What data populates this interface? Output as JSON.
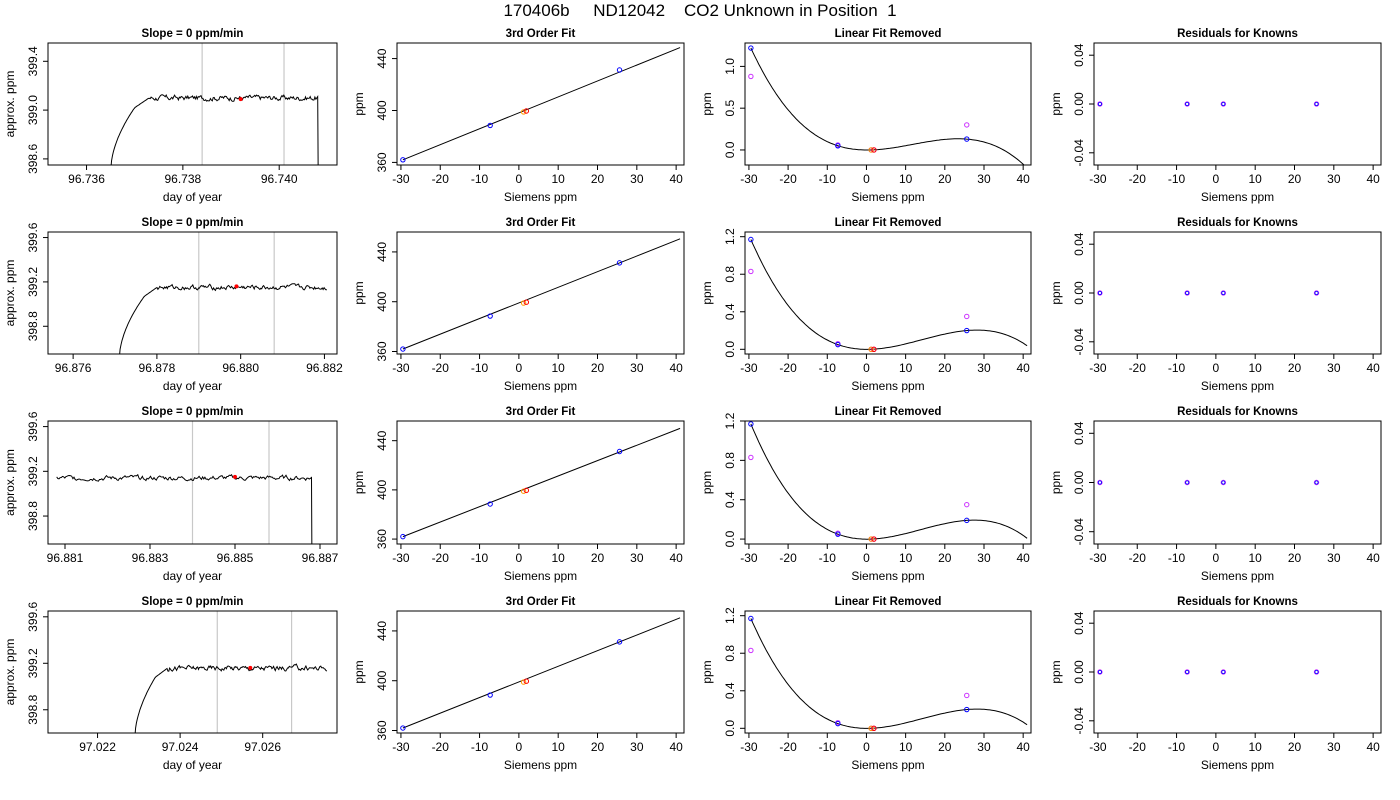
{
  "title": "170406b     ND12042    CO2 Unknown in Position  1",
  "chart_data": [
    {
      "type": "line",
      "row": 1,
      "title": "Slope =  0  ppm/min",
      "xlabel": "day of year",
      "ylabel": "approx. ppm",
      "xlim": [
        96.7352,
        96.7412
      ],
      "ylim": [
        398.55,
        399.55
      ],
      "xticks": [
        96.736,
        96.738,
        96.74
      ],
      "xtick_labels": [
        "96.736",
        "96.738",
        "96.740"
      ],
      "yticks": [
        398.6,
        399.0,
        399.4
      ],
      "ytick_labels": [
        "398.6",
        "399.0",
        "399.4"
      ],
      "vlines": [
        96.7384,
        96.7401
      ],
      "baseline": 399.1,
      "rise": [
        96.7365,
        96.737,
        96.7373
      ],
      "drop": 96.7408,
      "marker": [
        96.7392,
        399.09
      ]
    },
    {
      "type": "line",
      "row": 1,
      "title": "3rd Order Fit",
      "xlabel": "Siemens ppm",
      "ylabel": "ppm",
      "xlim": [
        -31,
        42
      ],
      "ylim": [
        358,
        452
      ],
      "xticks": [
        -30,
        -20,
        -10,
        0,
        10,
        20,
        30,
        40
      ],
      "yticks": [
        360,
        400,
        440
      ],
      "points": [
        [
          -29.5,
          362.0
        ],
        [
          -7.3,
          388.5
        ],
        [
          1.2,
          398.9
        ],
        [
          1.9,
          399.6
        ],
        [
          25.6,
          431.2
        ]
      ],
      "line": [
        [
          -29.5,
          362.0
        ],
        [
          41,
          448.5
        ]
      ]
    },
    {
      "type": "line",
      "row": 1,
      "title": "Linear Fit Removed",
      "xlabel": "Siemens ppm",
      "ylabel": "ppm",
      "xlim": [
        -31,
        42
      ],
      "ylim": [
        -0.18,
        1.28
      ],
      "xticks": [
        -30,
        -20,
        -10,
        0,
        10,
        20,
        30,
        40
      ],
      "yticks": [
        0.0,
        0.5,
        1.0
      ],
      "ytick_labels": [
        "0.0",
        "0.5",
        "1.0"
      ],
      "blue": [
        [
          -29.5,
          1.22
        ],
        [
          -7.3,
          0.05
        ],
        [
          1.2,
          0.0
        ],
        [
          1.9,
          0.0
        ],
        [
          25.6,
          0.13
        ]
      ],
      "magenta": [
        [
          -29.5,
          0.88
        ],
        [
          -7.3,
          0.06
        ],
        [
          1.2,
          0.0
        ],
        [
          1.9,
          0.0
        ],
        [
          25.6,
          0.3
        ]
      ]
    },
    {
      "type": "scatter",
      "row": 1,
      "title": "Residuals for Knowns",
      "xlabel": "Siemens ppm",
      "ylabel": "ppm",
      "xlim": [
        -31,
        42
      ],
      "ylim": [
        -0.05,
        0.05
      ],
      "xticks": [
        -30,
        -20,
        -10,
        0,
        10,
        20,
        30,
        40
      ],
      "yticks": [
        -0.04,
        0.0,
        0.04
      ],
      "ytick_labels": [
        "-0.04",
        "0.00",
        "0.04"
      ],
      "points": [
        [
          -29.5,
          0
        ],
        [
          -7.3,
          0
        ],
        [
          1.9,
          0
        ],
        [
          25.6,
          0
        ]
      ]
    },
    {
      "type": "line",
      "row": 2,
      "title": "Slope =  0  ppm/min",
      "xlabel": "day of year",
      "ylabel": "approx. ppm",
      "xlim": [
        96.8754,
        96.8823
      ],
      "ylim": [
        398.55,
        399.65
      ],
      "xticks": [
        96.876,
        96.878,
        96.88,
        96.882
      ],
      "xtick_labels": [
        "96.876",
        "96.878",
        "96.880",
        "96.882"
      ],
      "yticks": [
        398.8,
        399.2,
        399.6
      ],
      "ytick_labels": [
        "398.8",
        "399.2",
        "399.6"
      ],
      "vlines": [
        96.879,
        96.8808
      ],
      "baseline": 399.15,
      "rise": [
        96.8771,
        96.8777,
        96.878
      ],
      "drop": null,
      "marker": [
        96.8799,
        399.16
      ]
    },
    {
      "type": "line",
      "row": 2,
      "title": "3rd Order Fit",
      "xlabel": "Siemens ppm",
      "ylabel": "ppm",
      "xlim": [
        -31,
        42
      ],
      "ylim": [
        358,
        456
      ],
      "xticks": [
        -30,
        -20,
        -10,
        0,
        10,
        20,
        30,
        40
      ],
      "yticks": [
        360,
        400,
        440
      ],
      "points": [
        [
          -29.5,
          362.0
        ],
        [
          -7.3,
          388.5
        ],
        [
          1.2,
          398.9
        ],
        [
          1.9,
          399.6
        ],
        [
          25.6,
          431.2
        ]
      ],
      "line": [
        [
          -29.5,
          362.0
        ],
        [
          41,
          450.5
        ]
      ]
    },
    {
      "type": "line",
      "row": 2,
      "title": "Linear Fit Removed",
      "xlabel": "Siemens ppm",
      "ylabel": "ppm",
      "xlim": [
        -31,
        42
      ],
      "ylim": [
        -0.05,
        1.25
      ],
      "xticks": [
        -30,
        -20,
        -10,
        0,
        10,
        20,
        30,
        40
      ],
      "yticks": [
        0.0,
        0.4,
        0.8,
        1.2
      ],
      "ytick_labels": [
        "0.0",
        "0.4",
        "0.8",
        "1.2"
      ],
      "blue": [
        [
          -29.5,
          1.17
        ],
        [
          -7.3,
          0.05
        ],
        [
          1.2,
          0.0
        ],
        [
          1.9,
          0.0
        ],
        [
          25.6,
          0.2
        ]
      ],
      "magenta": [
        [
          -29.5,
          0.83
        ],
        [
          -7.3,
          0.06
        ],
        [
          1.2,
          0.0
        ],
        [
          1.9,
          0.0
        ],
        [
          25.6,
          0.35
        ]
      ]
    },
    {
      "type": "scatter",
      "row": 2,
      "title": "Residuals for Knowns",
      "xlabel": "Siemens ppm",
      "ylabel": "ppm",
      "xlim": [
        -31,
        42
      ],
      "ylim": [
        -0.05,
        0.05
      ],
      "xticks": [
        -30,
        -20,
        -10,
        0,
        10,
        20,
        30,
        40
      ],
      "yticks": [
        -0.04,
        0.0,
        0.04
      ],
      "ytick_labels": [
        "-0.04",
        "0.00",
        "0.04"
      ],
      "points": [
        [
          -29.5,
          0
        ],
        [
          -7.3,
          0
        ],
        [
          1.9,
          0
        ],
        [
          25.6,
          0
        ]
      ]
    },
    {
      "type": "line",
      "row": 3,
      "title": "Slope =  0  ppm/min",
      "xlabel": "day of year",
      "ylabel": "approx. ppm",
      "xlim": [
        96.8806,
        96.8874
      ],
      "ylim": [
        398.55,
        399.65
      ],
      "xticks": [
        96.881,
        96.883,
        96.885,
        96.887
      ],
      "xtick_labels": [
        "96.881",
        "96.883",
        "96.885",
        "96.887"
      ],
      "yticks": [
        398.8,
        399.2,
        399.6
      ],
      "ytick_labels": [
        "398.8",
        "399.2",
        "399.6"
      ],
      "vlines": [
        96.884,
        96.8858
      ],
      "baseline": 399.14,
      "rise": null,
      "drop": 96.8868,
      "marker": [
        96.885,
        399.15
      ]
    },
    {
      "type": "line",
      "row": 3,
      "title": "3rd Order Fit",
      "xlabel": "Siemens ppm",
      "ylabel": "ppm",
      "xlim": [
        -31,
        42
      ],
      "ylim": [
        356,
        456
      ],
      "xticks": [
        -30,
        -20,
        -10,
        0,
        10,
        20,
        30,
        40
      ],
      "yticks": [
        360,
        400,
        440
      ],
      "points": [
        [
          -29.5,
          362.0
        ],
        [
          -7.3,
          388.5
        ],
        [
          1.2,
          398.9
        ],
        [
          1.9,
          399.6
        ],
        [
          25.6,
          431.2
        ]
      ],
      "line": [
        [
          -29.5,
          362.0
        ],
        [
          41,
          450.0
        ]
      ]
    },
    {
      "type": "line",
      "row": 3,
      "title": "Linear Fit Removed",
      "xlabel": "Siemens ppm",
      "ylabel": "ppm",
      "xlim": [
        -31,
        42
      ],
      "ylim": [
        -0.05,
        1.2
      ],
      "xticks": [
        -30,
        -20,
        -10,
        0,
        10,
        20,
        30,
        40
      ],
      "yticks": [
        0.0,
        0.4,
        0.8,
        1.2
      ],
      "ytick_labels": [
        "0.0",
        "0.4",
        "0.8",
        "1.2"
      ],
      "blue": [
        [
          -29.5,
          1.17
        ],
        [
          -7.3,
          0.05
        ],
        [
          1.2,
          0.0
        ],
        [
          1.9,
          0.0
        ],
        [
          25.6,
          0.19
        ]
      ],
      "magenta": [
        [
          -29.5,
          0.83
        ],
        [
          -7.3,
          0.06
        ],
        [
          1.2,
          0.0
        ],
        [
          1.9,
          0.0
        ],
        [
          25.6,
          0.35
        ]
      ]
    },
    {
      "type": "scatter",
      "row": 3,
      "title": "Residuals for Knowns",
      "xlabel": "Siemens ppm",
      "ylabel": "ppm",
      "xlim": [
        -31,
        42
      ],
      "ylim": [
        -0.05,
        0.05
      ],
      "xticks": [
        -30,
        -20,
        -10,
        0,
        10,
        20,
        30,
        40
      ],
      "yticks": [
        -0.04,
        0.0,
        0.04
      ],
      "ytick_labels": [
        "-0.04",
        "0.00",
        "0.04"
      ],
      "points": [
        [
          -29.5,
          0
        ],
        [
          -7.3,
          0
        ],
        [
          1.9,
          0
        ],
        [
          25.6,
          0
        ]
      ]
    },
    {
      "type": "line",
      "row": 4,
      "title": "Slope =  0  ppm/min",
      "xlabel": "day of year",
      "ylabel": "approx. ppm",
      "xlim": [
        97.0208,
        97.0278
      ],
      "ylim": [
        398.6,
        399.65
      ],
      "xticks": [
        97.022,
        97.024,
        97.026
      ],
      "xtick_labels": [
        "97.022",
        "97.024",
        "97.026"
      ],
      "yticks": [
        398.8,
        399.2,
        399.6
      ],
      "ytick_labels": [
        "398.8",
        "399.2",
        "399.6"
      ],
      "vlines": [
        97.0249,
        97.0267
      ],
      "baseline": 399.16,
      "rise": [
        97.0229,
        97.0234,
        97.0237
      ],
      "drop": null,
      "marker": [
        97.0257,
        399.16
      ]
    },
    {
      "type": "line",
      "row": 4,
      "title": "3rd Order Fit",
      "xlabel": "Siemens ppm",
      "ylabel": "ppm",
      "xlim": [
        -31,
        42
      ],
      "ylim": [
        358,
        456
      ],
      "xticks": [
        -30,
        -20,
        -10,
        0,
        10,
        20,
        30,
        40
      ],
      "yticks": [
        360,
        400,
        440
      ],
      "points": [
        [
          -29.5,
          362.0
        ],
        [
          -7.3,
          388.5
        ],
        [
          1.2,
          398.9
        ],
        [
          1.9,
          399.6
        ],
        [
          25.6,
          431.2
        ]
      ],
      "line": [
        [
          -29.5,
          362.0
        ],
        [
          41,
          450.5
        ]
      ]
    },
    {
      "type": "line",
      "row": 4,
      "title": "Linear Fit Removed",
      "xlabel": "Siemens ppm",
      "ylabel": "ppm",
      "xlim": [
        -31,
        42
      ],
      "ylim": [
        -0.05,
        1.25
      ],
      "xticks": [
        -30,
        -20,
        -10,
        0,
        10,
        20,
        30,
        40
      ],
      "yticks": [
        0.0,
        0.4,
        0.8,
        1.2
      ],
      "ytick_labels": [
        "0.0",
        "0.4",
        "0.8",
        "1.2"
      ],
      "blue": [
        [
          -29.5,
          1.17
        ],
        [
          -7.3,
          0.05
        ],
        [
          1.2,
          0.0
        ],
        [
          1.9,
          0.0
        ],
        [
          25.6,
          0.2
        ]
      ],
      "magenta": [
        [
          -29.5,
          0.83
        ],
        [
          -7.3,
          0.06
        ],
        [
          1.2,
          0.0
        ],
        [
          1.9,
          0.0
        ],
        [
          25.6,
          0.35
        ]
      ]
    },
    {
      "type": "scatter",
      "row": 4,
      "title": "Residuals for Knowns",
      "xlabel": "Siemens ppm",
      "ylabel": "ppm",
      "xlim": [
        -31,
        42
      ],
      "ylim": [
        -0.05,
        0.05
      ],
      "xticks": [
        -30,
        -20,
        -10,
        0,
        10,
        20,
        30,
        40
      ],
      "yticks": [
        -0.04,
        0.0,
        0.04
      ],
      "ytick_labels": [
        "-0.04",
        "0.00",
        "0.04"
      ],
      "points": [
        [
          -29.5,
          0
        ],
        [
          -7.3,
          0
        ],
        [
          1.9,
          0
        ],
        [
          25.6,
          0
        ]
      ]
    }
  ],
  "colors": {
    "blue": "#0000ff",
    "magenta": "#cc33ff",
    "red": "#ff0000",
    "orange": "#ff9900",
    "gray": "#c8c8c8",
    "line": "#000000"
  }
}
